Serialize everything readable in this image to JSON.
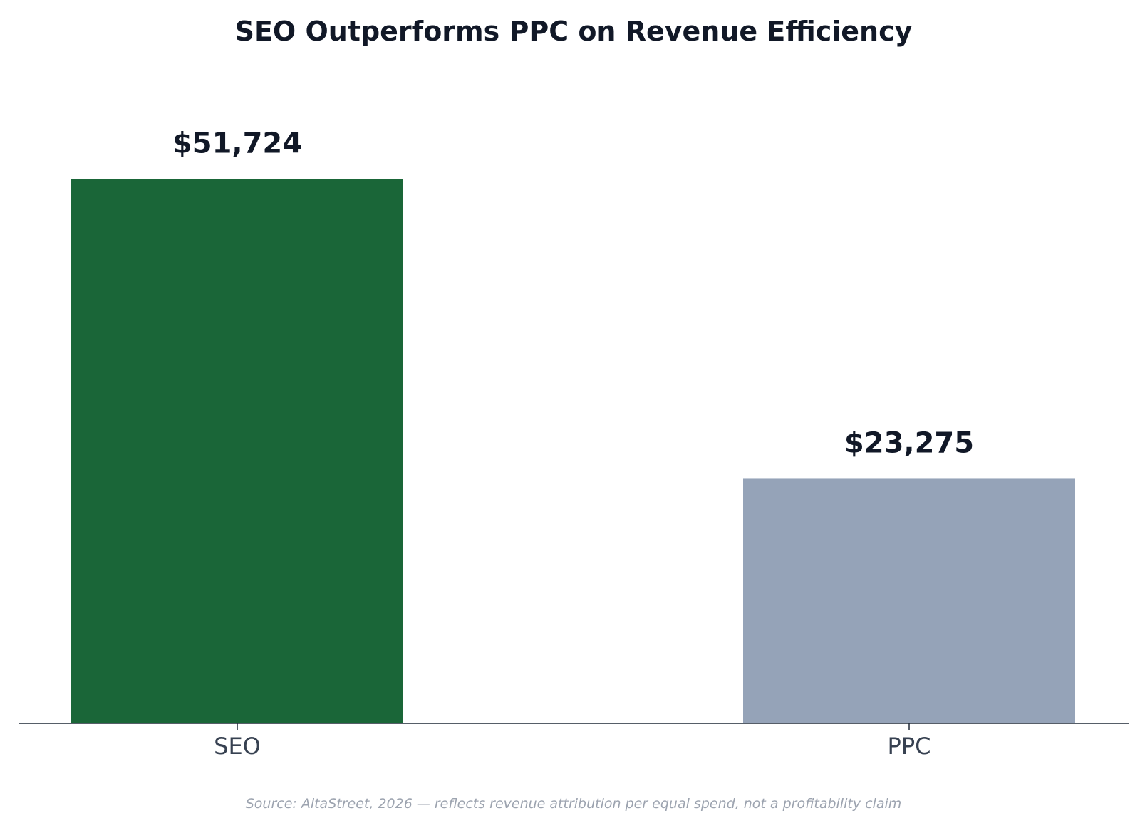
{
  "chart_data": {
    "type": "bar",
    "title": "SEO Outperforms PPC on Revenue Efficiency",
    "categories": [
      "SEO",
      "PPC"
    ],
    "values": [
      51724,
      23275
    ],
    "value_labels": [
      "$51,724",
      "$23,275"
    ],
    "colors": [
      "#1a6638",
      "#95a3b8"
    ],
    "xlabel": "",
    "ylabel": "",
    "ylim": [
      0,
      54310
    ],
    "grid": false,
    "legend": "none"
  },
  "footer": {
    "source": "Source: AltaStreet, 2026 — reflects revenue attribution per equal spend, not a profitability claim"
  }
}
